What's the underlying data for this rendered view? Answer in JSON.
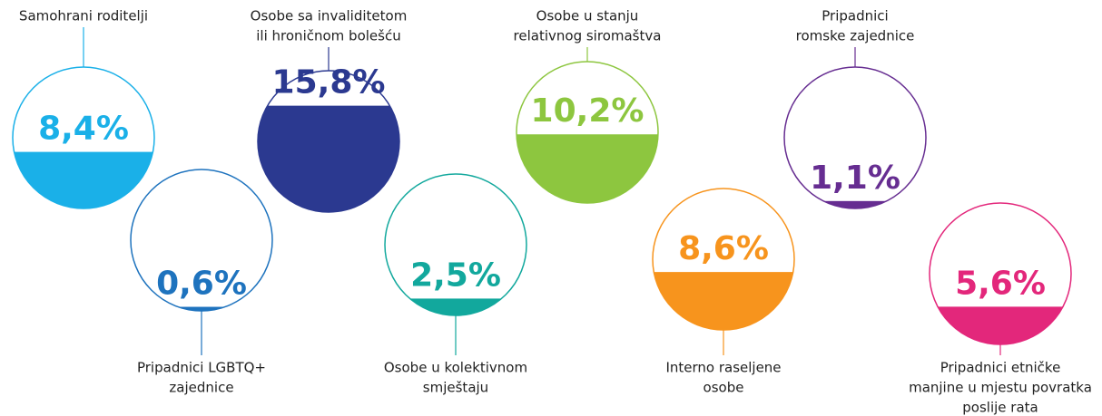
{
  "chart_data": {
    "type": "fill-circle",
    "categories": [
      [
        "Samohrani roditelji"
      ],
      [
        "Pripadnici LGBTQ+",
        "zajednice"
      ],
      [
        "Osobe sa invaliditetom",
        "ili hroničnom bolešću"
      ],
      [
        "Osobe u kolektivnom",
        "smještaju"
      ],
      [
        "Osobe u stanju",
        "relativnog siromaštva"
      ],
      [
        "Interno raseljene",
        "osobe"
      ],
      [
        "Pripadnici",
        "romske zajednice"
      ],
      [
        "Pripadnici etničke",
        "manjine u mjestu povratka",
        "poslije rata"
      ]
    ],
    "values": [
      8.4,
      0.6,
      15.8,
      2.5,
      10.2,
      8.6,
      1.1,
      5.6
    ],
    "value_labels": [
      "8,4%",
      "0,6%",
      "15,8%",
      "2,5%",
      "10,2%",
      "8,6%",
      "1,1%",
      "5,6%"
    ],
    "colors": [
      "#1ab0e8",
      "#1e73be",
      "#2b3990",
      "#12a89d",
      "#8dc63f",
      "#f7941d",
      "#662d91",
      "#e3277b"
    ]
  }
}
